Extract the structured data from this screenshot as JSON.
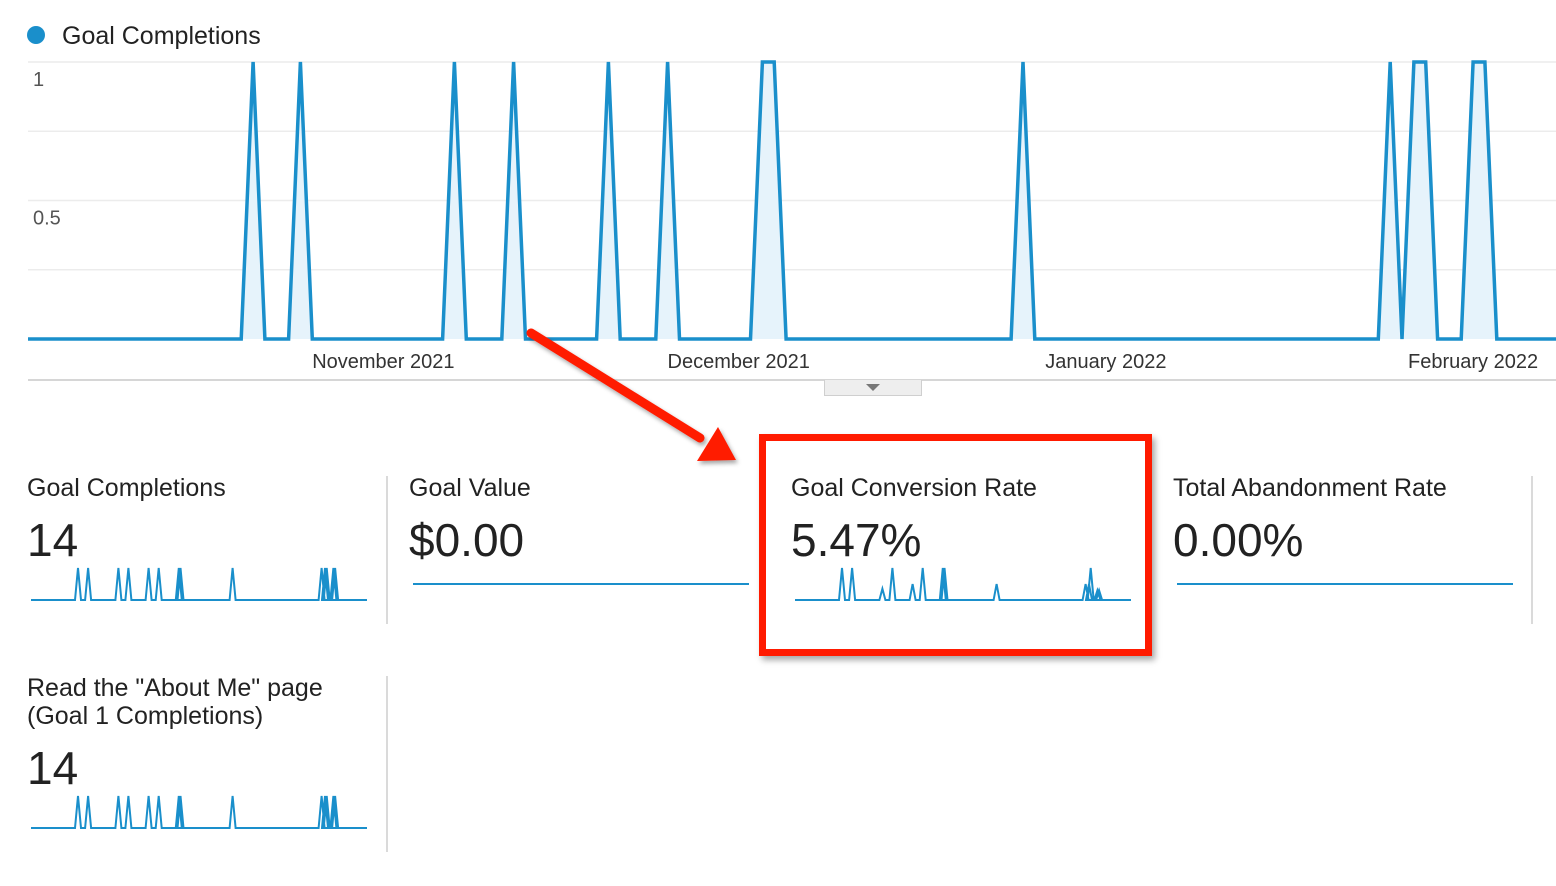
{
  "colors": {
    "series": "#1a8fcb",
    "fill": "#e6f3fb",
    "gridline": "#ececec",
    "highlight": "#ff1a00"
  },
  "chart": {
    "legend_label": "Goal Completions",
    "legend_dot_icon": "circle-dot-icon"
  },
  "chart_data": {
    "type": "area",
    "title": "",
    "legend": [
      "Goal Completions"
    ],
    "legend_position": "top-left",
    "series": [
      {
        "name": "Goal Completions",
        "spikes": [
          {
            "date": "2021-10-21",
            "value": 1
          },
          {
            "date": "2021-10-25",
            "value": 1
          },
          {
            "date": "2021-11-07",
            "value": 1
          },
          {
            "date": "2021-11-12",
            "value": 1
          },
          {
            "date": "2021-11-20",
            "value": 1
          },
          {
            "date": "2021-11-25",
            "value": 1
          },
          {
            "date": "2021-12-03",
            "value": 1
          },
          {
            "date": "2021-12-04",
            "value": 1
          },
          {
            "date": "2021-12-25",
            "value": 1
          },
          {
            "date": "2022-01-25",
            "value": 1
          },
          {
            "date": "2022-01-27",
            "value": 1
          },
          {
            "date": "2022-01-28",
            "value": 1
          },
          {
            "date": "2022-02-01",
            "value": 1
          },
          {
            "date": "2022-02-02",
            "value": 1
          }
        ],
        "other_days_value": 0
      }
    ],
    "x_range": [
      "2021-10-02",
      "2022-02-08"
    ],
    "ylim": [
      0,
      1
    ],
    "y_ticks": [
      "1",
      "0.5"
    ],
    "x_ticks": [
      "November 2021",
      "December 2021",
      "January 2022",
      "February 2022"
    ],
    "grid": true
  },
  "metrics": [
    {
      "label": "Goal Completions",
      "value": "14",
      "sparkline": {
        "kind": "spikes",
        "spikes": [
          0.14,
          0.17,
          0.26,
          0.29,
          0.35,
          0.38,
          0.44,
          0.445,
          0.6,
          0.865,
          0.875,
          0.88,
          0.9,
          0.905
        ],
        "heights": [
          1,
          1,
          1,
          1,
          1,
          1,
          1,
          1,
          1,
          1,
          1,
          1,
          1,
          1
        ]
      }
    },
    {
      "label": "Goal Value",
      "value": "$0.00",
      "sparkline": {
        "kind": "flat"
      }
    },
    {
      "label": "Goal Conversion Rate",
      "value": "5.47%",
      "sparkline": {
        "kind": "spikes",
        "spikes": [
          0.14,
          0.17,
          0.26,
          0.29,
          0.35,
          0.38,
          0.44,
          0.445,
          0.6,
          0.865,
          0.875,
          0.88,
          0.9,
          0.905
        ],
        "heights": [
          1,
          1,
          0.35,
          1,
          0.5,
          1,
          1,
          1,
          0.5,
          0.5,
          0.5,
          1,
          0.3,
          0.3
        ]
      }
    },
    {
      "label": "Total Abandonment Rate",
      "value": "0.00%",
      "sparkline": {
        "kind": "flat"
      }
    },
    {
      "label": "Read the \"About Me\" page",
      "label_line2": "(Goal 1 Completions)",
      "value": "14",
      "sparkline": {
        "kind": "spikes",
        "spikes": [
          0.14,
          0.17,
          0.26,
          0.29,
          0.35,
          0.38,
          0.44,
          0.445,
          0.6,
          0.865,
          0.875,
          0.88,
          0.9,
          0.905
        ],
        "heights": [
          1,
          1,
          1,
          1,
          1,
          1,
          1,
          1,
          1,
          1,
          1,
          1,
          1,
          1
        ]
      }
    }
  ]
}
